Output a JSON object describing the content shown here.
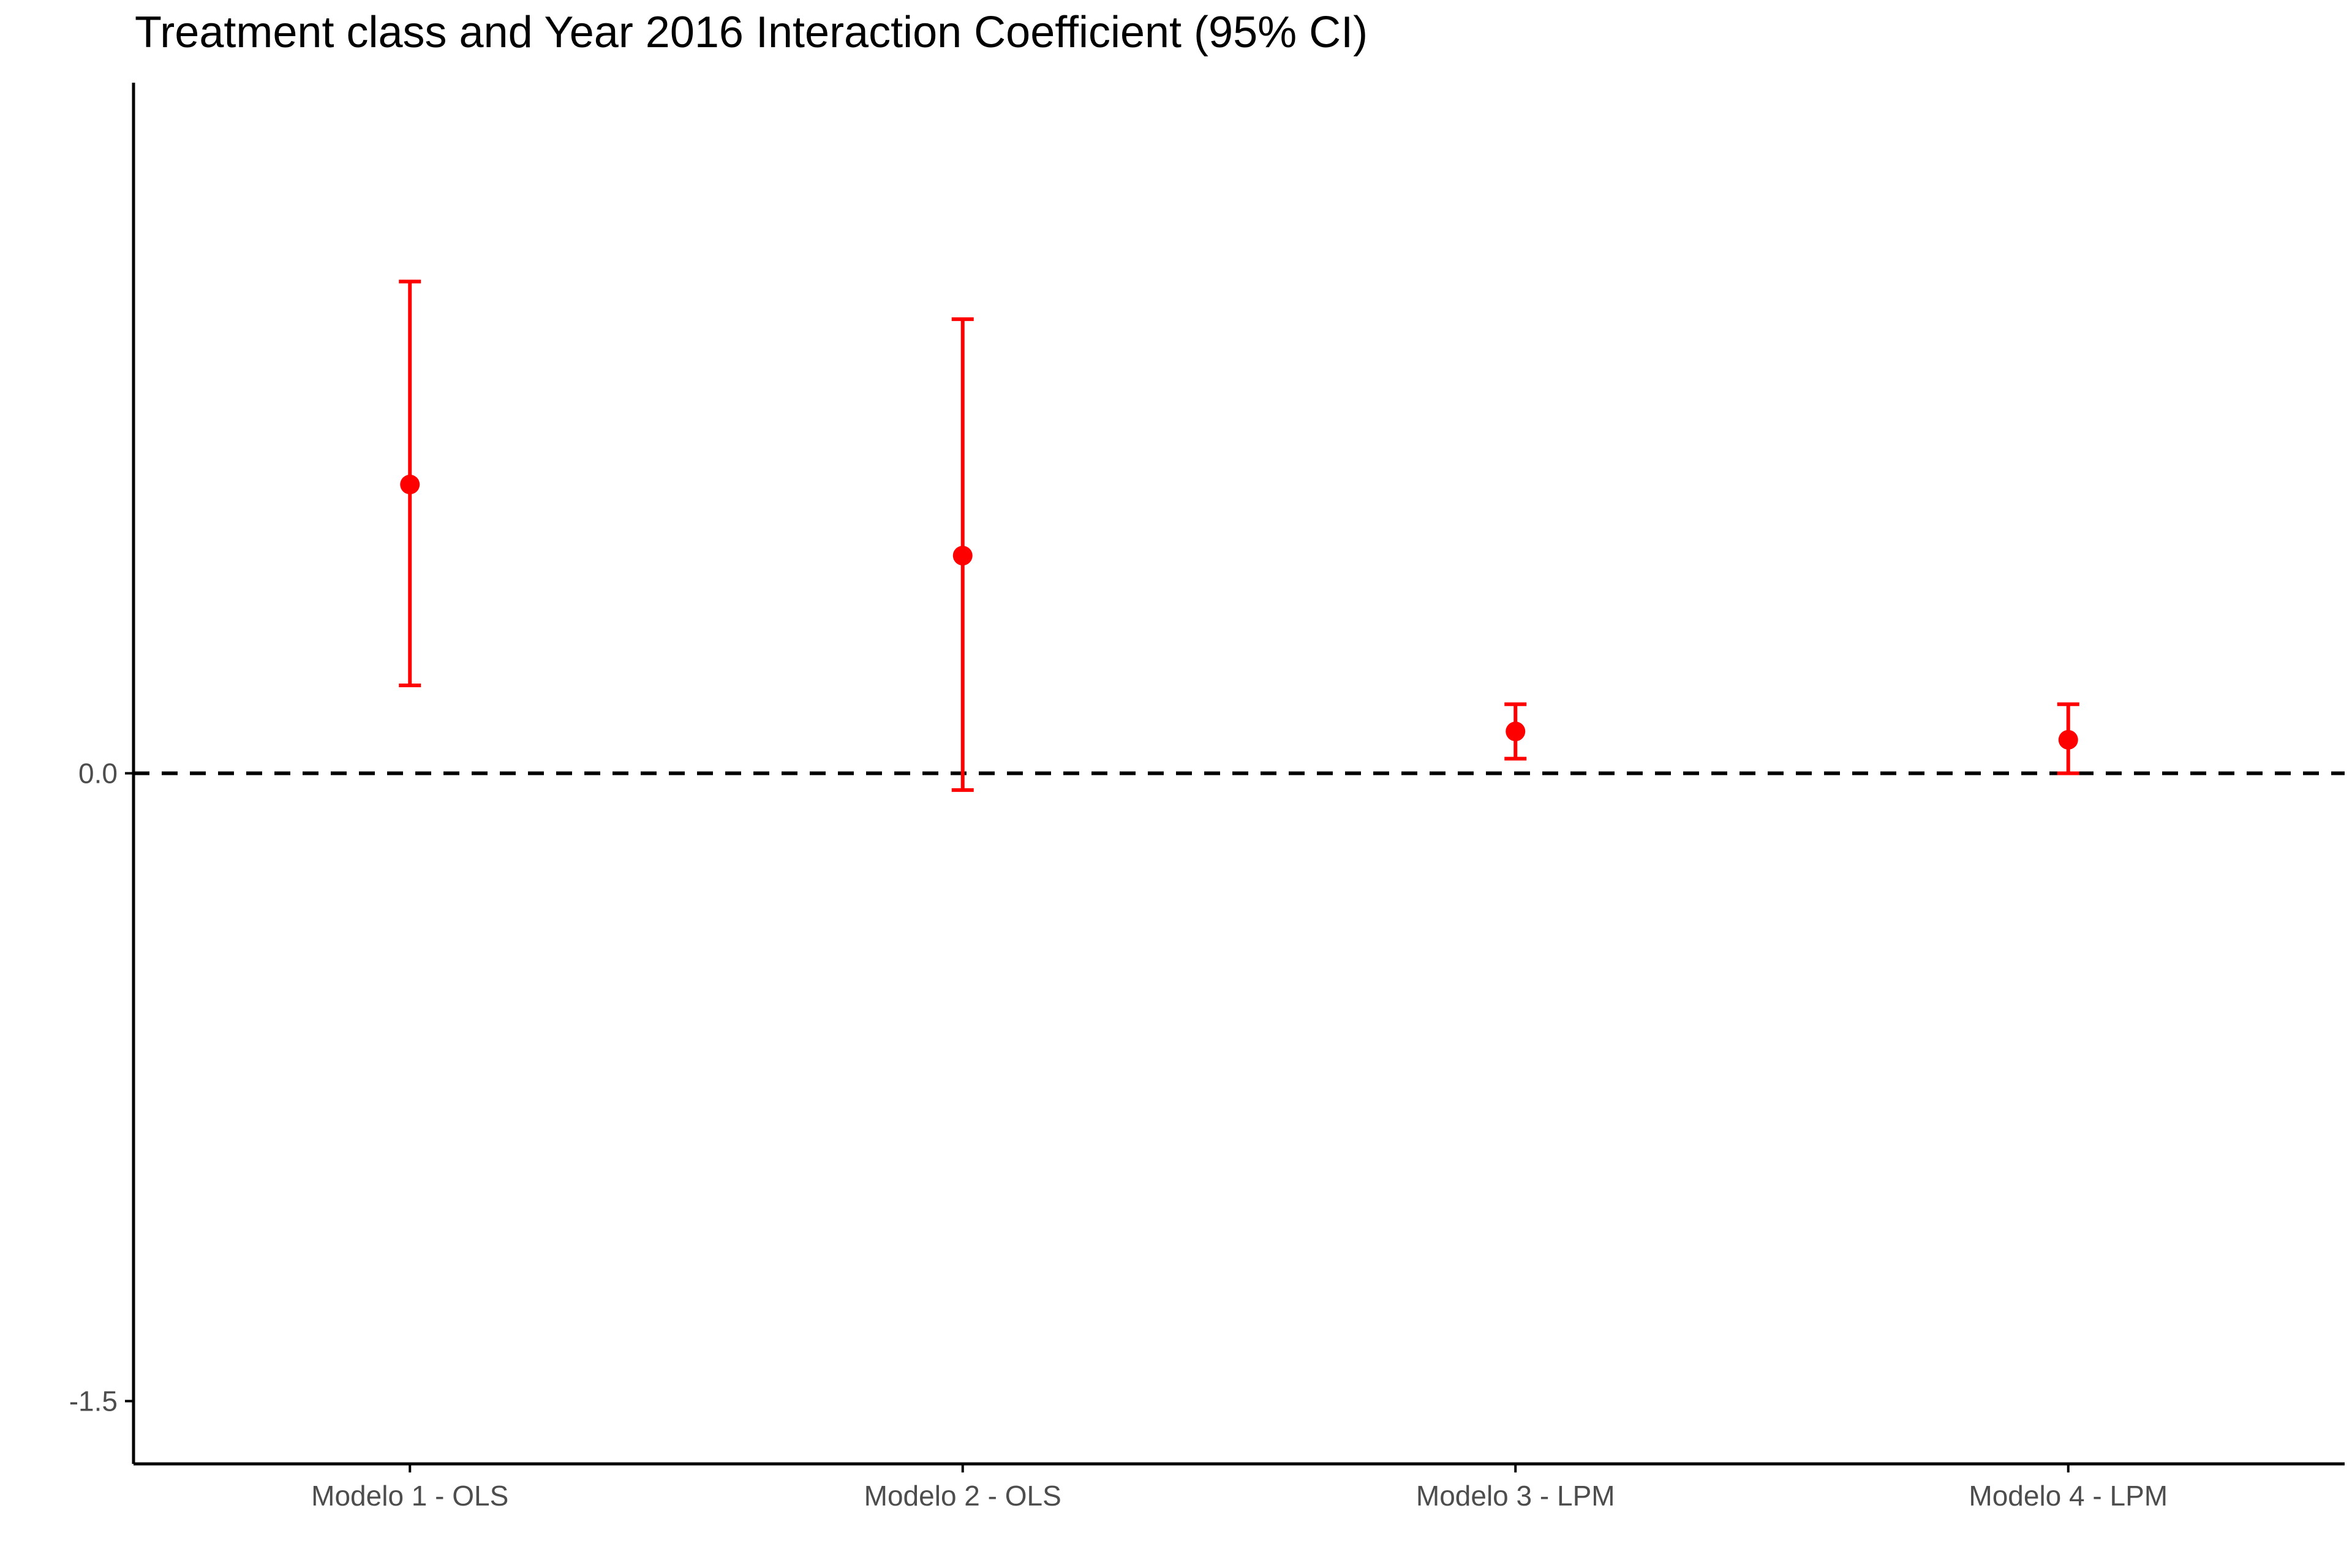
{
  "chart_data": {
    "type": "errorbar",
    "title": "Treatment class and Year 2016 Interaction Coefficient (95% CI)",
    "xlabel": "",
    "ylabel": "",
    "categories": [
      "Modelo 1 - OLS",
      "Modelo 2 - OLS",
      "Modelo 3 - LPM",
      "Modelo 4 - LPM"
    ],
    "estimates": [
      0.69,
      0.52,
      0.1,
      0.08
    ],
    "ci_lower": [
      0.21,
      -0.04,
      0.035,
      0.0
    ],
    "ci_upper": [
      1.175,
      1.085,
      0.165,
      0.165
    ],
    "ylim": [
      -1.65,
      1.65
    ],
    "yticks": [
      -1.5,
      0.0
    ],
    "ytick_labels": [
      "-1.5",
      "0.0"
    ],
    "reference_line": 0.0,
    "grid": false,
    "legend": "none",
    "colors": {
      "points": "#FF0000",
      "reference_line": "#000000",
      "axes": "#000000",
      "tick_labels": "#4d4d4d"
    }
  }
}
